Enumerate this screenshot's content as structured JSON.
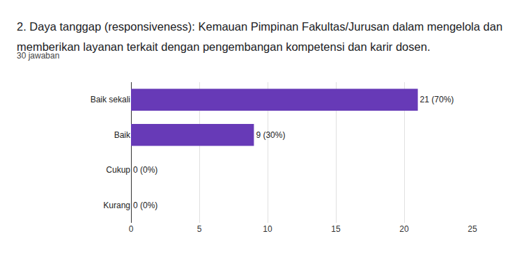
{
  "chart_data": {
    "type": "bar",
    "title": "2. Daya tanggap (responsiveness):  Kemauan Pimpinan Fakultas/Jurusan dalam mengelola dan memberikan layanan terkait dengan pengembangan kompetensi dan karir dosen.",
    "subtitle": "30 jawaban",
    "orientation": "horizontal",
    "categories": [
      "Baik sekali",
      "Baik",
      "Cukup",
      "Kurang"
    ],
    "values": [
      21,
      9,
      0,
      0
    ],
    "value_labels": [
      "21 (70%)",
      "9 (30%)",
      "0 (0%)",
      "0 (0%)"
    ],
    "data_labels": true,
    "color": "#673ab7",
    "xlim": [
      0,
      25
    ],
    "xticks": [
      0,
      5,
      10,
      15,
      20,
      25
    ],
    "grid": true
  }
}
